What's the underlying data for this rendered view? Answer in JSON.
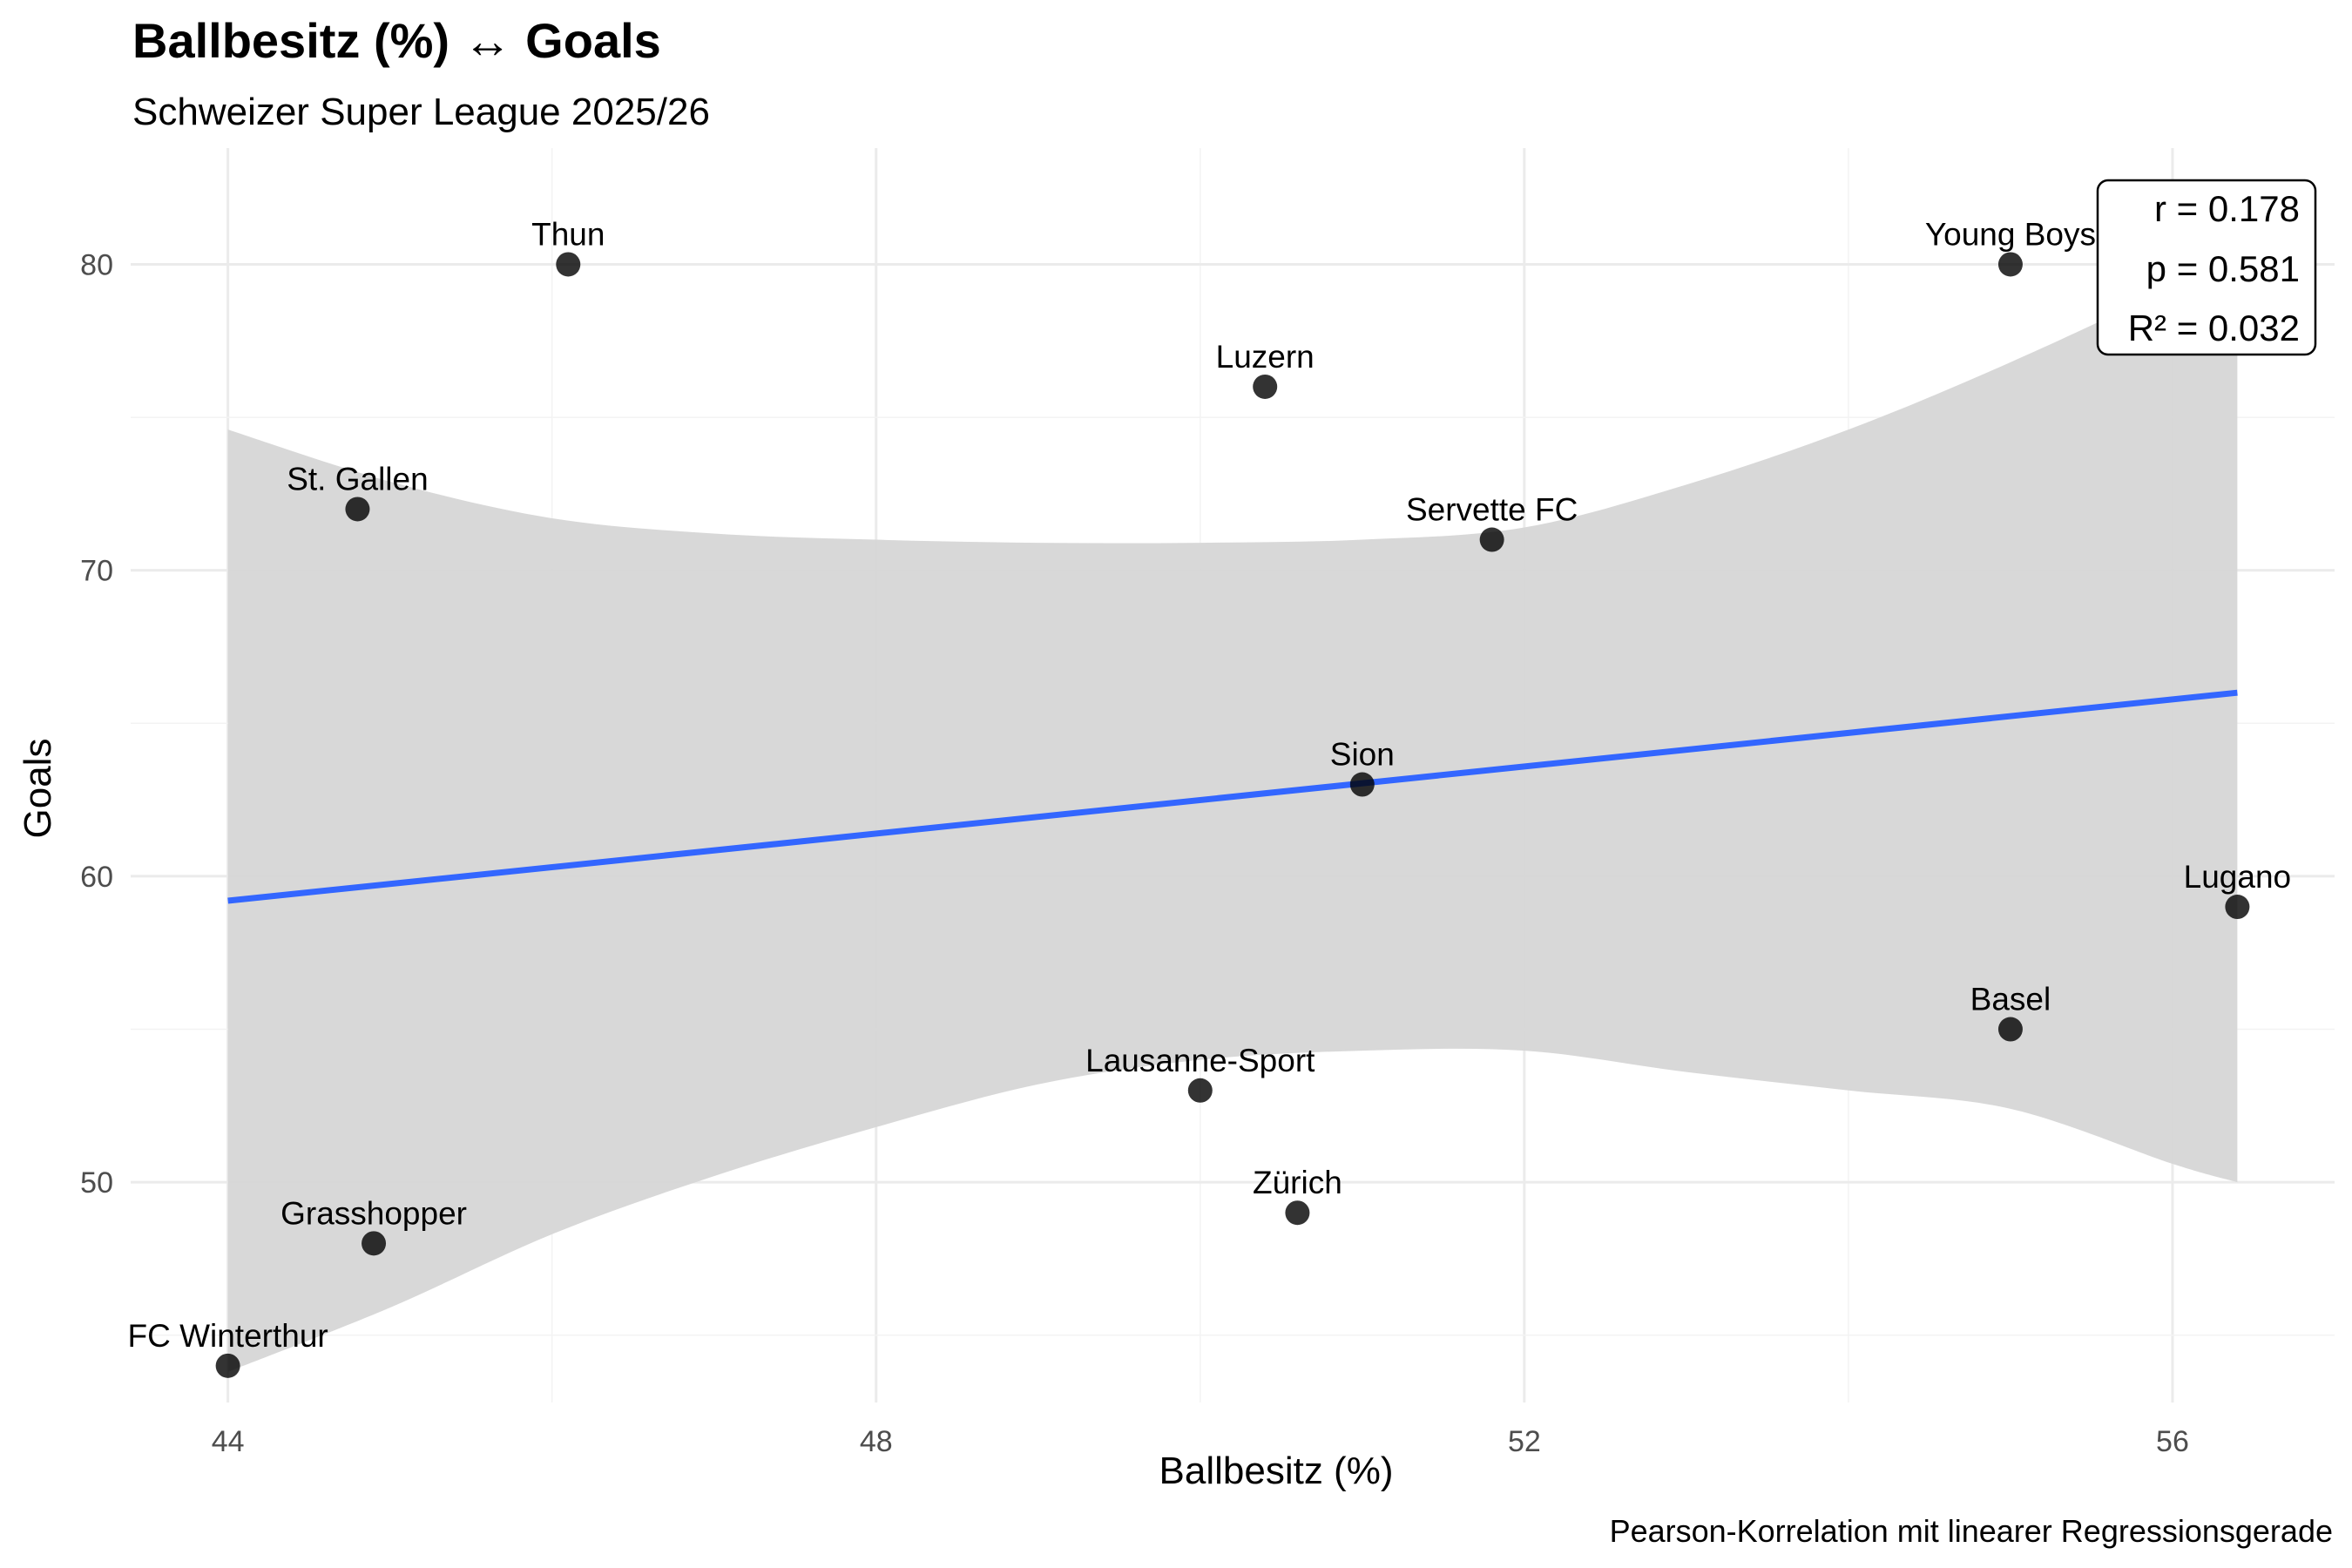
{
  "chart_data": {
    "type": "scatter",
    "title": "Ballbesitz (%) ↔ Goals",
    "subtitle": "Schweizer Super League 2025/26",
    "xlabel": "Ballbesitz (%)",
    "ylabel": "Goals",
    "caption": "Pearson-Korrelation mit linearer Regressionsgerade",
    "xlim": [
      43.4,
      57.0
    ],
    "ylim": [
      42.8,
      83.8
    ],
    "x_ticks": [
      44,
      48,
      52,
      56
    ],
    "y_ticks": [
      50,
      60,
      70,
      80
    ],
    "grid": true,
    "points": [
      {
        "label": "Thun",
        "x": 46.1,
        "y": 80
      },
      {
        "label": "Young Boys",
        "x": 55.0,
        "y": 80
      },
      {
        "label": "Luzern",
        "x": 50.4,
        "y": 76
      },
      {
        "label": "St. Gallen",
        "x": 44.8,
        "y": 72
      },
      {
        "label": "Servette FC",
        "x": 51.8,
        "y": 71
      },
      {
        "label": "Sion",
        "x": 51.0,
        "y": 63
      },
      {
        "label": "Lugano",
        "x": 56.4,
        "y": 59
      },
      {
        "label": "Basel",
        "x": 55.0,
        "y": 55
      },
      {
        "label": "Lausanne-Sport",
        "x": 50.0,
        "y": 53
      },
      {
        "label": "Zürich",
        "x": 50.6,
        "y": 49
      },
      {
        "label": "Grasshopper",
        "x": 44.9,
        "y": 48
      },
      {
        "label": "FC Winterthur",
        "x": 44.0,
        "y": 44
      }
    ],
    "regression": {
      "x": [
        44.0,
        56.4
      ],
      "y": [
        59.2,
        66.0
      ],
      "color": "#3366ff"
    },
    "confidence_band": {
      "x": [
        44.0,
        45.0,
        46.0,
        47.0,
        48.0,
        49.0,
        50.0,
        51.0,
        52.0,
        53.0,
        54.0,
        55.0,
        56.0,
        56.4
      ],
      "upper": [
        74.6,
        72.9,
        71.7,
        71.2,
        71.0,
        70.9,
        70.9,
        71.0,
        71.4,
        72.8,
        74.6,
        76.8,
        79.3,
        80.7
      ],
      "lower": [
        43.8,
        45.9,
        48.3,
        50.2,
        51.8,
        53.2,
        54.0,
        54.3,
        54.3,
        53.6,
        53.0,
        52.4,
        50.6,
        50.0
      ],
      "color": "#d6d6d6"
    },
    "stats": {
      "r": "r = 0.178",
      "p": "p = 0.581",
      "r2": "R² = 0.032"
    }
  }
}
